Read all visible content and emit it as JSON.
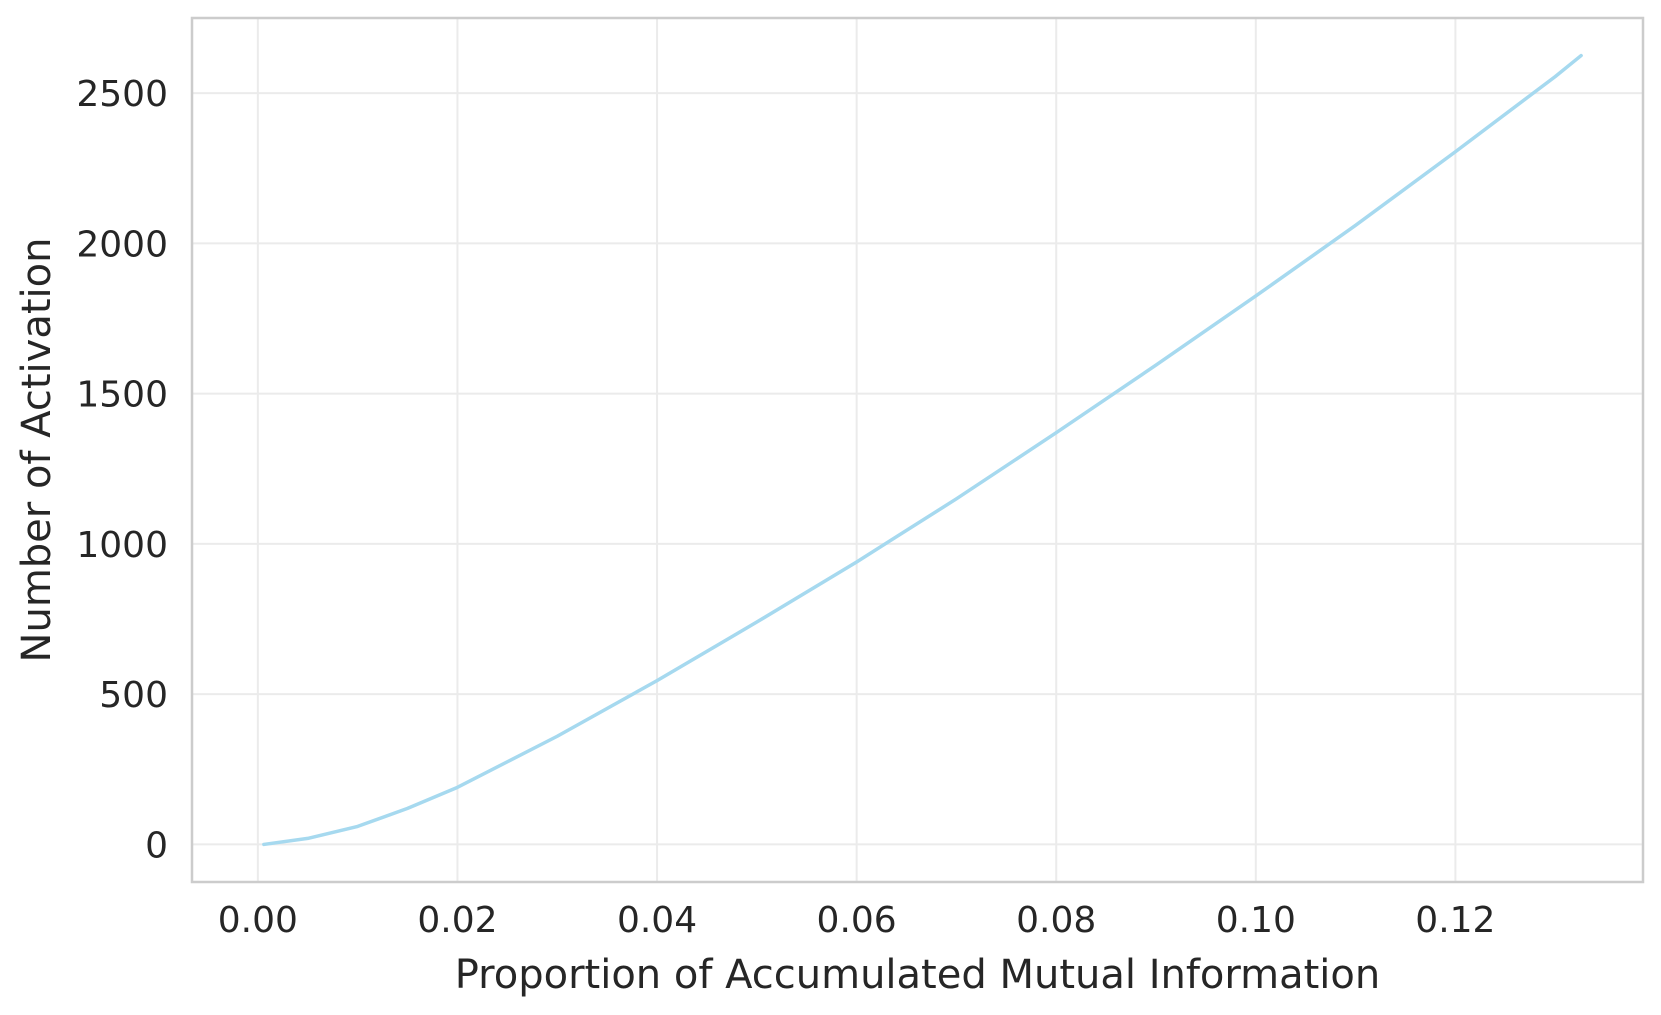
{
  "chart_data": {
    "type": "line",
    "title": "",
    "xlabel": "Proportion of Accumulated Mutual Information",
    "ylabel": "Number of Activation",
    "xlim": [
      -0.0066,
      0.1388
    ],
    "ylim": [
      -125,
      2750
    ],
    "xticks": [
      0.0,
      0.02,
      0.04,
      0.06,
      0.08,
      0.1,
      0.12
    ],
    "xtick_labels": [
      "0.00",
      "0.02",
      "0.04",
      "0.06",
      "0.08",
      "0.10",
      "0.12"
    ],
    "yticks": [
      0,
      500,
      1000,
      1500,
      2000,
      2500
    ],
    "ytick_labels": [
      "0",
      "500",
      "1000",
      "1500",
      "2000",
      "2500"
    ],
    "grid": true,
    "legend": "none",
    "series": [
      {
        "color": "#a6d9ef",
        "x": [
          0.0006,
          0.005,
          0.01,
          0.015,
          0.02,
          0.03,
          0.04,
          0.05,
          0.06,
          0.07,
          0.08,
          0.09,
          0.1,
          0.11,
          0.12,
          0.13,
          0.1326
        ],
        "y": [
          0,
          20,
          60,
          120,
          190,
          360,
          545,
          740,
          940,
          1150,
          1370,
          1595,
          1825,
          2060,
          2305,
          2555,
          2625
        ]
      }
    ]
  }
}
